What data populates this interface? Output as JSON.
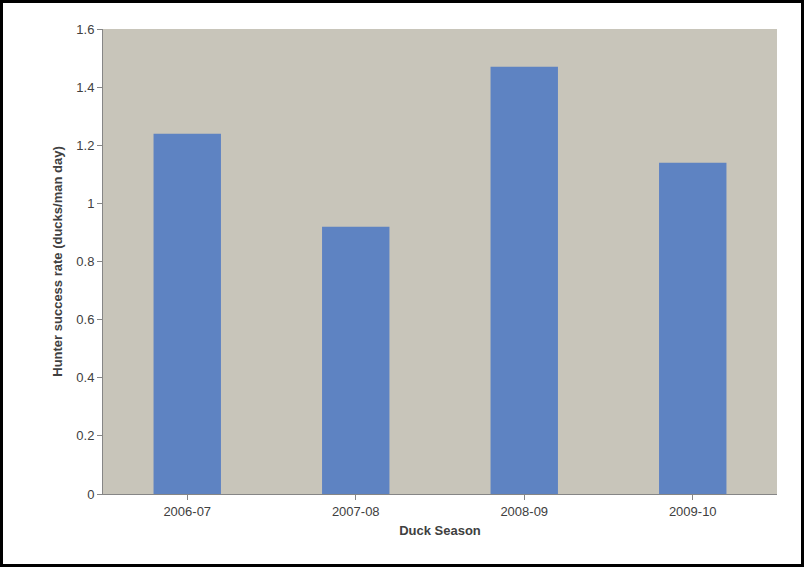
{
  "chart_data": {
    "type": "bar",
    "x_label": "Duck Season",
    "y_label": "Hunter success rate (ducks/man day)",
    "categories": [
      "2006-07",
      "2007-08",
      "2008-09",
      "2009-10"
    ],
    "values": [
      1.24,
      0.92,
      1.47,
      1.14
    ],
    "color": "#4472c4",
    "ylim": [
      0,
      1.6
    ],
    "yticks": [
      0,
      0.2,
      0.4,
      0.6,
      0.8,
      1,
      1.2,
      1.4,
      1.6
    ],
    "grid": false
  }
}
